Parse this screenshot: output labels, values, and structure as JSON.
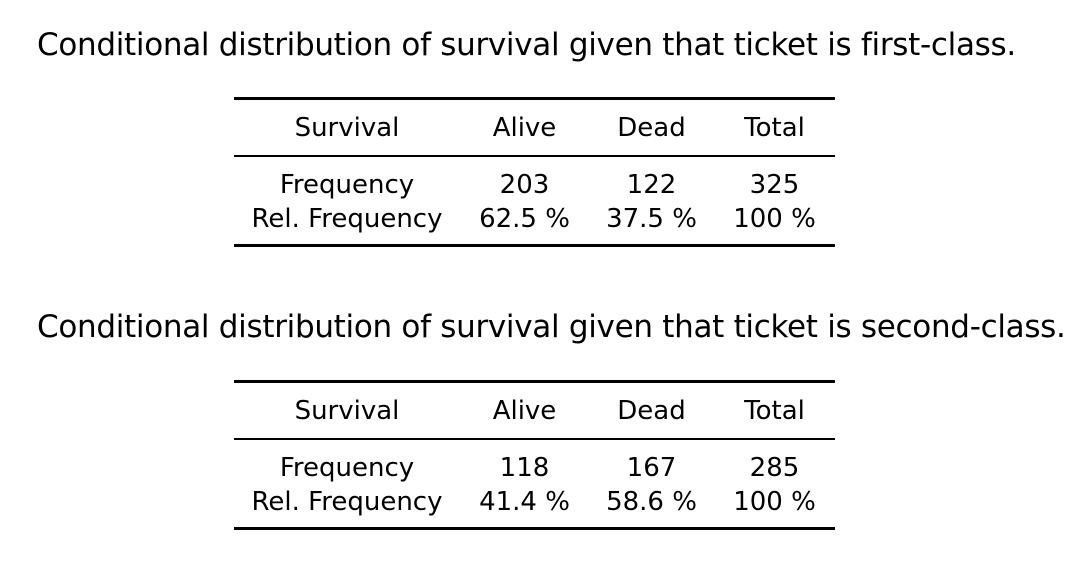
{
  "sections": [
    {
      "title": "Conditional distribution of survival given that ticket is first-class.",
      "table": {
        "headers": [
          "Survival",
          "Alive",
          "Dead",
          "Total"
        ],
        "rows": [
          [
            "Frequency",
            "203",
            "122",
            "325"
          ],
          [
            "Rel. Frequency",
            "62.5 %",
            "37.5 %",
            "100 %"
          ]
        ]
      }
    },
    {
      "title": "Conditional distribution of survival given that ticket is second-class.",
      "table": {
        "headers": [
          "Survival",
          "Alive",
          "Dead",
          "Total"
        ],
        "rows": [
          [
            "Frequency",
            "118",
            "167",
            "285"
          ],
          [
            "Rel. Frequency",
            "41.4 %",
            "58.6 %",
            "100 %"
          ]
        ]
      }
    }
  ]
}
